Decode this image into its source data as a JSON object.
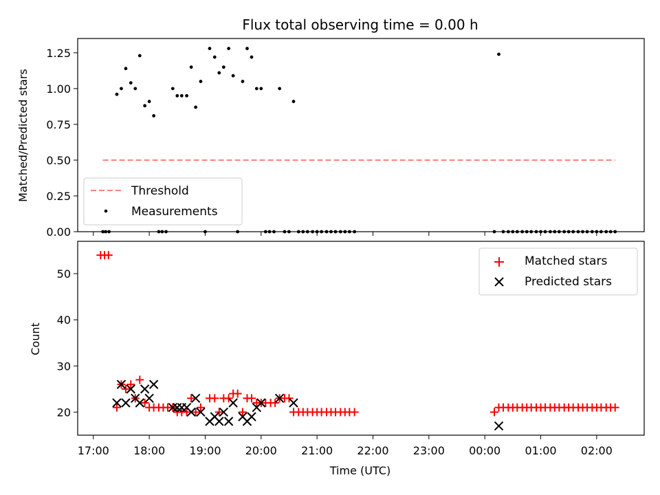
{
  "chart_data": [
    {
      "type": "scatter",
      "title": "Flux total observing time = 0.00 h",
      "xlabel": "",
      "ylabel": "Matched/Predicted stars",
      "ylim": [
        0,
        1.35
      ],
      "yticks": [
        0.0,
        0.25,
        0.5,
        0.75,
        1.0,
        1.25
      ],
      "ytick_labels": [
        "0.00",
        "0.25",
        "0.50",
        "0.75",
        "1.00",
        "1.25"
      ],
      "x_range_hours": [
        16.72,
        26.85
      ],
      "legend": {
        "placement": "lower-left",
        "entries": [
          "Threshold",
          "Measurements"
        ]
      },
      "threshold": {
        "label": "Threshold",
        "value": 0.5,
        "x_start": 17.17,
        "x_end": 26.33,
        "color": "#ff7f7f",
        "style": "dashed"
      },
      "series": [
        {
          "name": "Measurements",
          "color": "#000000",
          "points": [
            [
              17.17,
              0
            ],
            [
              17.22,
              0
            ],
            [
              17.28,
              0
            ],
            [
              17.42,
              0.96
            ],
            [
              17.5,
              1.0
            ],
            [
              17.58,
              1.14
            ],
            [
              17.67,
              1.04
            ],
            [
              17.75,
              1.0
            ],
            [
              17.83,
              1.23
            ],
            [
              17.92,
              0.88
            ],
            [
              18.0,
              0.91
            ],
            [
              18.08,
              0.81
            ],
            [
              18.17,
              0
            ],
            [
              18.23,
              0
            ],
            [
              18.3,
              0
            ],
            [
              18.42,
              1.0
            ],
            [
              18.5,
              0.95
            ],
            [
              18.58,
              0.95
            ],
            [
              18.67,
              0.95
            ],
            [
              18.75,
              1.15
            ],
            [
              18.83,
              0.87
            ],
            [
              18.92,
              1.05
            ],
            [
              19.0,
              0
            ],
            [
              19.08,
              1.28
            ],
            [
              19.17,
              1.22
            ],
            [
              19.25,
              1.11
            ],
            [
              19.33,
              1.15
            ],
            [
              19.42,
              1.28
            ],
            [
              19.5,
              1.09
            ],
            [
              19.58,
              0
            ],
            [
              19.67,
              1.05
            ],
            [
              19.75,
              1.28
            ],
            [
              19.83,
              1.22
            ],
            [
              19.92,
              1.0
            ],
            [
              20.0,
              1.0
            ],
            [
              20.08,
              0
            ],
            [
              20.15,
              0
            ],
            [
              20.23,
              0
            ],
            [
              20.33,
              1.0
            ],
            [
              20.42,
              0
            ],
            [
              20.5,
              0
            ],
            [
              20.58,
              0.91
            ],
            [
              20.67,
              0
            ],
            [
              20.75,
              0
            ],
            [
              20.83,
              0
            ],
            [
              20.92,
              0
            ],
            [
              21.0,
              0
            ],
            [
              21.08,
              0
            ],
            [
              21.17,
              0
            ],
            [
              21.25,
              0
            ],
            [
              21.33,
              0
            ],
            [
              21.42,
              0
            ],
            [
              21.5,
              0
            ],
            [
              21.58,
              0
            ],
            [
              21.67,
              0
            ],
            [
              24.17,
              0
            ],
            [
              24.25,
              1.24
            ],
            [
              24.33,
              0
            ],
            [
              24.42,
              0
            ],
            [
              24.5,
              0
            ],
            [
              24.58,
              0
            ],
            [
              24.67,
              0
            ],
            [
              24.75,
              0
            ],
            [
              24.83,
              0
            ],
            [
              24.92,
              0
            ],
            [
              25.0,
              0
            ],
            [
              25.08,
              0
            ],
            [
              25.17,
              0
            ],
            [
              25.25,
              0
            ],
            [
              25.33,
              0
            ],
            [
              25.42,
              0
            ],
            [
              25.5,
              0
            ],
            [
              25.58,
              0
            ],
            [
              25.67,
              0
            ],
            [
              25.75,
              0
            ],
            [
              25.83,
              0
            ],
            [
              25.92,
              0
            ],
            [
              26.0,
              0
            ],
            [
              26.08,
              0
            ],
            [
              26.17,
              0
            ],
            [
              26.25,
              0
            ],
            [
              26.33,
              0
            ]
          ]
        }
      ]
    },
    {
      "type": "scatter",
      "title": "",
      "xlabel": "Time (UTC)",
      "ylabel": "Count",
      "ylim": [
        15,
        57
      ],
      "yticks": [
        20,
        30,
        40,
        50
      ],
      "ytick_labels": [
        "20",
        "30",
        "40",
        "50"
      ],
      "x_range_hours": [
        16.72,
        26.85
      ],
      "xticks_hours": [
        17,
        18,
        19,
        20,
        21,
        22,
        23,
        24,
        25,
        26
      ],
      "xtick_labels": [
        "17:00",
        "18:00",
        "19:00",
        "20:00",
        "21:00",
        "22:00",
        "23:00",
        "00:00",
        "01:00",
        "02:00"
      ],
      "legend": {
        "placement": "upper-right",
        "entries": [
          "Matched stars",
          "Predicted stars"
        ]
      },
      "series": [
        {
          "name": "Matched stars",
          "marker": "+",
          "color": "#ff0000",
          "points": [
            [
              17.13,
              54
            ],
            [
              17.2,
              54
            ],
            [
              17.27,
              54
            ],
            [
              17.42,
              21
            ],
            [
              17.5,
              26
            ],
            [
              17.58,
              25
            ],
            [
              17.67,
              26
            ],
            [
              17.75,
              23
            ],
            [
              17.83,
              27
            ],
            [
              17.92,
              22
            ],
            [
              18.0,
              21
            ],
            [
              18.08,
              21
            ],
            [
              18.17,
              21
            ],
            [
              18.25,
              21
            ],
            [
              18.33,
              21
            ],
            [
              18.42,
              21
            ],
            [
              18.5,
              20
            ],
            [
              18.58,
              20
            ],
            [
              18.67,
              20
            ],
            [
              18.75,
              23
            ],
            [
              18.83,
              20
            ],
            [
              18.92,
              21
            ],
            [
              19.08,
              23
            ],
            [
              19.17,
              23
            ],
            [
              19.25,
              20
            ],
            [
              19.33,
              23
            ],
            [
              19.42,
              23
            ],
            [
              19.5,
              24
            ],
            [
              19.58,
              24
            ],
            [
              19.67,
              20
            ],
            [
              19.75,
              23
            ],
            [
              19.83,
              23
            ],
            [
              19.92,
              22
            ],
            [
              20.0,
              22
            ],
            [
              20.08,
              22
            ],
            [
              20.17,
              22
            ],
            [
              20.25,
              22
            ],
            [
              20.33,
              23
            ],
            [
              20.42,
              23
            ],
            [
              20.5,
              23
            ],
            [
              20.58,
              20
            ],
            [
              20.67,
              20
            ],
            [
              20.75,
              20
            ],
            [
              20.83,
              20
            ],
            [
              20.92,
              20
            ],
            [
              21.0,
              20
            ],
            [
              21.08,
              20
            ],
            [
              21.17,
              20
            ],
            [
              21.25,
              20
            ],
            [
              21.33,
              20
            ],
            [
              21.42,
              20
            ],
            [
              21.5,
              20
            ],
            [
              21.58,
              20
            ],
            [
              21.67,
              20
            ],
            [
              24.17,
              20
            ],
            [
              24.25,
              21
            ],
            [
              24.33,
              21
            ],
            [
              24.42,
              21
            ],
            [
              24.5,
              21
            ],
            [
              24.58,
              21
            ],
            [
              24.67,
              21
            ],
            [
              24.75,
              21
            ],
            [
              24.83,
              21
            ],
            [
              24.92,
              21
            ],
            [
              25.0,
              21
            ],
            [
              25.08,
              21
            ],
            [
              25.17,
              21
            ],
            [
              25.25,
              21
            ],
            [
              25.33,
              21
            ],
            [
              25.42,
              21
            ],
            [
              25.5,
              21
            ],
            [
              25.58,
              21
            ],
            [
              25.67,
              21
            ],
            [
              25.75,
              21
            ],
            [
              25.83,
              21
            ],
            [
              25.92,
              21
            ],
            [
              26.0,
              21
            ],
            [
              26.08,
              21
            ],
            [
              26.17,
              21
            ],
            [
              26.25,
              21
            ],
            [
              26.33,
              21
            ]
          ]
        },
        {
          "name": "Predicted stars",
          "marker": "x",
          "color": "#000000",
          "points": [
            [
              17.42,
              22
            ],
            [
              17.5,
              26
            ],
            [
              17.58,
              22
            ],
            [
              17.67,
              25
            ],
            [
              17.75,
              23
            ],
            [
              17.83,
              22
            ],
            [
              17.92,
              25
            ],
            [
              18.0,
              23
            ],
            [
              18.08,
              26
            ],
            [
              18.42,
              21
            ],
            [
              18.5,
              21
            ],
            [
              18.58,
              21
            ],
            [
              18.67,
              21
            ],
            [
              18.75,
              20
            ],
            [
              18.83,
              23
            ],
            [
              18.92,
              20
            ],
            [
              19.08,
              18
            ],
            [
              19.17,
              19
            ],
            [
              19.25,
              18
            ],
            [
              19.33,
              20
            ],
            [
              19.42,
              18
            ],
            [
              19.5,
              22
            ],
            [
              19.67,
              19
            ],
            [
              19.75,
              18
            ],
            [
              19.83,
              19
            ],
            [
              19.92,
              21
            ],
            [
              20.0,
              22
            ],
            [
              20.33,
              23
            ],
            [
              20.58,
              22
            ],
            [
              24.25,
              17
            ]
          ]
        }
      ]
    }
  ]
}
